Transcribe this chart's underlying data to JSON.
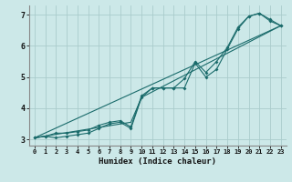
{
  "title": "",
  "xlabel": "Humidex (Indice chaleur)",
  "bg_color": "#cce8e8",
  "grid_color": "#aacccc",
  "line_color": "#1a6b6b",
  "xlim": [
    -0.5,
    23.5
  ],
  "ylim": [
    2.8,
    7.3
  ],
  "xticks": [
    0,
    1,
    2,
    3,
    4,
    5,
    6,
    7,
    8,
    9,
    10,
    11,
    12,
    13,
    14,
    15,
    16,
    17,
    18,
    19,
    20,
    21,
    22,
    23
  ],
  "yticks": [
    3,
    4,
    5,
    6,
    7
  ],
  "x_data": [
    0,
    1,
    2,
    3,
    4,
    5,
    6,
    7,
    8,
    9,
    10,
    11,
    12,
    13,
    14,
    15,
    16,
    17,
    18,
    19,
    20,
    21,
    22,
    23
  ],
  "line1": [
    3.05,
    3.1,
    3.05,
    3.1,
    3.15,
    3.2,
    3.35,
    3.5,
    3.55,
    3.35,
    4.35,
    4.65,
    4.65,
    4.65,
    4.65,
    5.45,
    5.0,
    5.25,
    5.9,
    6.55,
    6.95,
    7.05,
    6.8,
    6.65
  ],
  "line2": [
    3.05,
    3.1,
    3.2,
    3.2,
    3.25,
    3.3,
    3.45,
    3.55,
    3.6,
    3.4,
    4.4,
    4.65,
    4.65,
    4.65,
    4.95,
    5.5,
    5.15,
    5.5,
    5.95,
    6.6,
    6.95,
    7.05,
    6.85,
    6.65
  ],
  "line3_x": [
    0,
    23
  ],
  "line3_y": [
    3.05,
    6.65
  ],
  "line4_x": [
    0,
    9,
    10,
    23
  ],
  "line4_y": [
    3.05,
    3.55,
    4.35,
    6.65
  ]
}
